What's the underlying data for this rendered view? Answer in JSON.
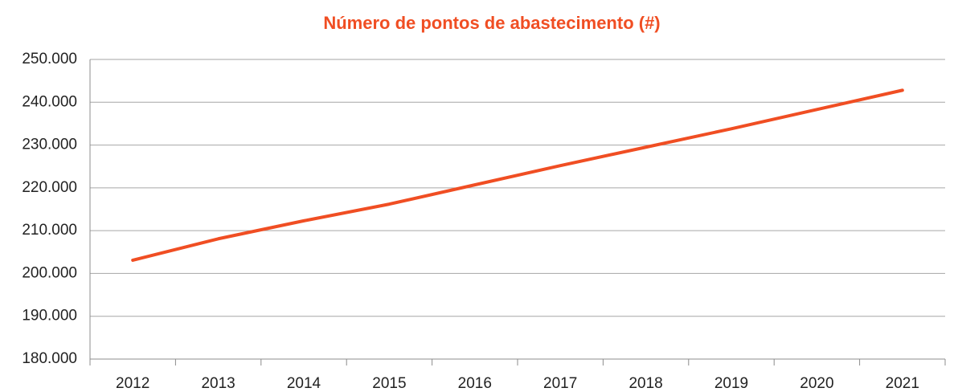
{
  "chart_data": {
    "type": "line",
    "title": "Número de pontos de abastecimento (#)",
    "categories": [
      "2012",
      "2013",
      "2014",
      "2015",
      "2016",
      "2017",
      "2018",
      "2019",
      "2020",
      "2021"
    ],
    "series": [
      {
        "name": "Número de pontos de abastecimento",
        "color": "#f04e23",
        "values": [
          203100,
          208100,
          212300,
          216200,
          220700,
          225200,
          229500,
          233800,
          238300,
          242800
        ]
      }
    ],
    "ylim": [
      180000,
      250000
    ],
    "yticks": [
      {
        "value": 180000,
        "label": "180.000"
      },
      {
        "value": 190000,
        "label": "190.000"
      },
      {
        "value": 200000,
        "label": "200.000"
      },
      {
        "value": 210000,
        "label": "210.000"
      },
      {
        "value": 220000,
        "label": "220.000"
      },
      {
        "value": 230000,
        "label": "230.000"
      },
      {
        "value": 240000,
        "label": "240.000"
      },
      {
        "value": 250000,
        "label": "250.000"
      }
    ],
    "grid": true
  }
}
